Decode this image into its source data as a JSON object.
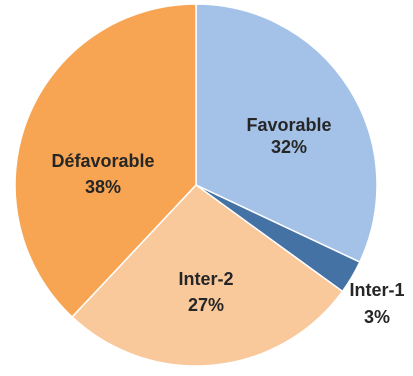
{
  "chart_data": {
    "type": "pie",
    "title": "",
    "start_angle_deg": 0,
    "direction": "clockwise",
    "legend": "none",
    "slices": [
      {
        "label": "Favorable",
        "percent_label": "32%",
        "value": 32,
        "color": "#A4C2E8"
      },
      {
        "label": "Inter-1",
        "percent_label": "3%",
        "value": 3,
        "color": "#4472A4"
      },
      {
        "label": "Inter-2",
        "percent_label": "27%",
        "value": 27,
        "color": "#F9C89B"
      },
      {
        "label": "Défavorable",
        "percent_label": "38%",
        "value": 38,
        "color": "#F7A553"
      }
    ]
  }
}
